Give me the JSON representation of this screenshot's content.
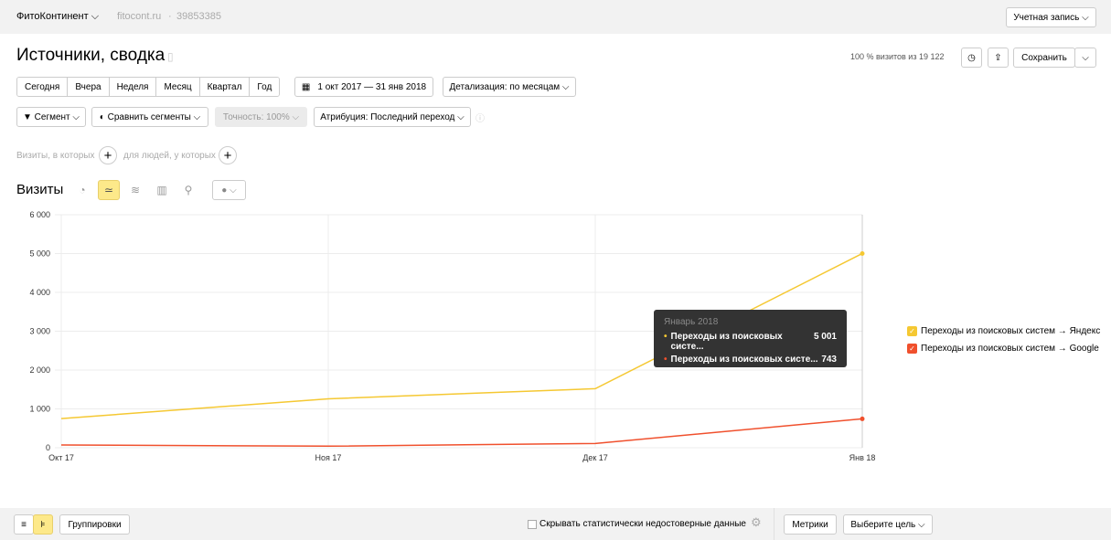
{
  "header": {
    "counter_name": "ФитоКонтинент",
    "site": "fitocont.ru",
    "counter_id": "39853385",
    "account_button": "Учетная запись"
  },
  "page": {
    "title": "Источники, сводка",
    "visits_info": "100 % визитов из 19 122",
    "save_button": "Сохранить"
  },
  "periods": [
    "Сегодня",
    "Вчера",
    "Неделя",
    "Месяц",
    "Квартал",
    "Год"
  ],
  "date_range": "1 окт 2017 — 31 янв 2018",
  "detail": "Детализация: по месяцам",
  "filters": {
    "segment": "Сегмент",
    "compare": "Сравнить сегменты",
    "accuracy": "Точность: 100%",
    "attribution": "Атрибуция: Последний переход"
  },
  "conditions": {
    "visits": "Визиты, в которых",
    "people": "для людей, у которых"
  },
  "chart_title": "Визиты",
  "tooltip": {
    "title": "Январь 2018",
    "rows": [
      {
        "label": "Переходы из поисковых систе...",
        "value": "5 001"
      },
      {
        "label": "Переходы из поисковых систе...",
        "value": "743"
      }
    ]
  },
  "chart_data": {
    "type": "line",
    "categories": [
      "Окт 17",
      "Ноя 17",
      "Дек 17",
      "Янв 18"
    ],
    "ylim": [
      0,
      6000
    ],
    "yticks": [
      "0",
      "1 000",
      "2 000",
      "3 000",
      "4 000",
      "5 000",
      "6 000"
    ],
    "series": [
      {
        "name": "Переходы из поисковых систем → Яндекс",
        "color": "#f5c832",
        "values": [
          750,
          1260,
          1520,
          5001
        ]
      },
      {
        "name": "Переходы из поисковых систем → Google",
        "color": "#f0502d",
        "values": [
          70,
          40,
          110,
          743
        ]
      }
    ]
  },
  "bottom": {
    "groupings": "Группировки",
    "hide_unreliable": "Скрывать статистически недостоверные данные",
    "metrics": "Метрики",
    "goal": "Выберите цель"
  }
}
